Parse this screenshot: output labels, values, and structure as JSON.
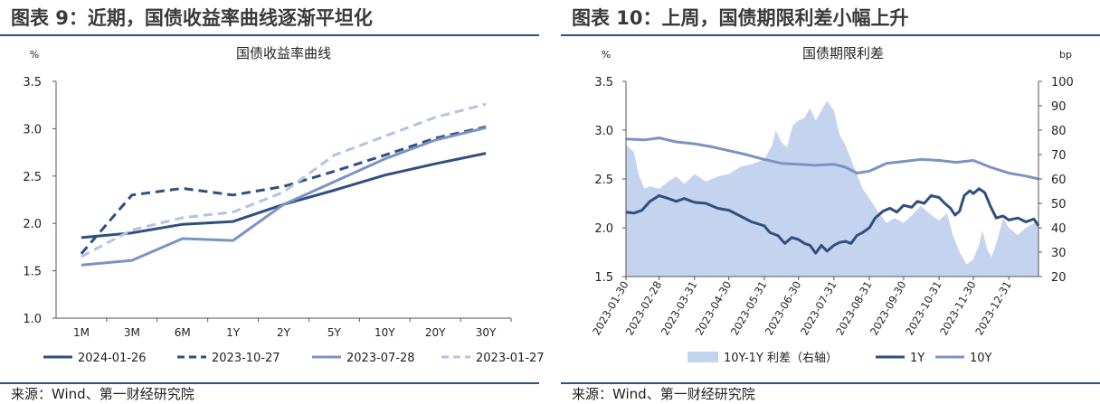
{
  "left": {
    "figure_title": "图表 9：近期，国债收益率曲线逐渐平坦化",
    "source": "来源：Wind、第一财经研究院"
  },
  "right": {
    "figure_title": "图表 10：上周，国债期限利差小幅上升",
    "source": "来源：Wind、第一财经研究院"
  },
  "colors": {
    "navy": "#2f4f7f",
    "mid": "#7b93c4",
    "light": "#b4c3e0",
    "area": "#c5d4ee"
  },
  "chart_data": [
    {
      "type": "line",
      "title": "国债收益率曲线",
      "ylabel": "%",
      "xlabel": "",
      "ylim": [
        1.0,
        3.5
      ],
      "yticks": [
        "1.0",
        "1.5",
        "2.0",
        "2.5",
        "3.0",
        "3.5"
      ],
      "categories": [
        "1M",
        "3M",
        "6M",
        "1Y",
        "2Y",
        "5Y",
        "10Y",
        "20Y",
        "30Y"
      ],
      "series": [
        {
          "name": "2024-01-26",
          "style": "solid",
          "color": "navy",
          "values": [
            1.85,
            1.9,
            1.99,
            2.02,
            2.2,
            2.35,
            2.51,
            2.63,
            2.74
          ]
        },
        {
          "name": "2023-10-27",
          "style": "dashed",
          "color": "navy",
          "values": [
            1.68,
            2.3,
            2.37,
            2.3,
            2.39,
            2.55,
            2.72,
            2.9,
            3.02
          ]
        },
        {
          "name": "2023-07-28",
          "style": "solid",
          "color": "mid",
          "values": [
            1.56,
            1.61,
            1.84,
            1.82,
            2.2,
            2.44,
            2.68,
            2.88,
            3.01
          ]
        },
        {
          "name": "2023-01-27",
          "style": "dashed",
          "color": "light",
          "values": [
            1.65,
            1.93,
            2.06,
            2.12,
            2.33,
            2.72,
            2.92,
            3.12,
            3.26
          ]
        }
      ]
    },
    {
      "type": "line",
      "title": "国债期限利差",
      "ylabel": "%",
      "ylabel_right": "bp",
      "ylim": [
        1.5,
        3.5
      ],
      "yticks": [
        "1.5",
        "2.0",
        "2.5",
        "3.0",
        "3.5"
      ],
      "ylim_right": [
        20,
        100
      ],
      "yticks_right": [
        "20",
        "30",
        "40",
        "50",
        "60",
        "70",
        "80",
        "90",
        "100"
      ],
      "x_start": "2023-01-30",
      "x_end": "2024-01-26",
      "categories": [
        "2023-01-30",
        "2023-02-28",
        "2023-03-31",
        "2023-04-30",
        "2023-05-31",
        "2023-06-30",
        "2023-07-31",
        "2023-08-31",
        "2023-09-30",
        "2023-10-31",
        "2023-11-30",
        "2023-12-31"
      ],
      "series": [
        {
          "name": "10Y-1Y 利差（右轴）",
          "type": "area",
          "axis": "right",
          "color": "area",
          "points": [
            [
              "2023-01-30",
              74
            ],
            [
              "2023-02-06",
              71
            ],
            [
              "2023-02-10",
              62
            ],
            [
              "2023-02-15",
              56
            ],
            [
              "2023-02-20",
              57
            ],
            [
              "2023-02-28",
              56
            ],
            [
              "2023-03-08",
              59
            ],
            [
              "2023-03-15",
              61
            ],
            [
              "2023-03-22",
              58
            ],
            [
              "2023-03-31",
              62
            ],
            [
              "2023-04-10",
              59
            ],
            [
              "2023-04-20",
              61
            ],
            [
              "2023-04-30",
              62
            ],
            [
              "2023-05-10",
              65
            ],
            [
              "2023-05-20",
              66
            ],
            [
              "2023-05-31",
              68
            ],
            [
              "2023-06-07",
              74
            ],
            [
              "2023-06-10",
              80
            ],
            [
              "2023-06-15",
              75
            ],
            [
              "2023-06-20",
              73
            ],
            [
              "2023-06-25",
              82
            ],
            [
              "2023-06-30",
              84
            ],
            [
              "2023-07-05",
              85
            ],
            [
              "2023-07-10",
              89
            ],
            [
              "2023-07-15",
              84
            ],
            [
              "2023-07-20",
              88
            ],
            [
              "2023-07-25",
              92
            ],
            [
              "2023-07-31",
              88
            ],
            [
              "2023-08-05",
              78
            ],
            [
              "2023-08-10",
              74
            ],
            [
              "2023-08-15",
              68
            ],
            [
              "2023-08-20",
              62
            ],
            [
              "2023-08-25",
              56
            ],
            [
              "2023-08-31",
              52
            ],
            [
              "2023-09-07",
              47
            ],
            [
              "2023-09-15",
              42
            ],
            [
              "2023-09-22",
              44
            ],
            [
              "2023-09-30",
              42
            ],
            [
              "2023-10-07",
              45
            ],
            [
              "2023-10-15",
              49
            ],
            [
              "2023-10-22",
              46
            ],
            [
              "2023-10-31",
              43
            ],
            [
              "2023-11-07",
              46
            ],
            [
              "2023-11-12",
              37
            ],
            [
              "2023-11-18",
              30
            ],
            [
              "2023-11-24",
              25
            ],
            [
              "2023-11-30",
              27
            ],
            [
              "2023-12-05",
              33
            ],
            [
              "2023-12-08",
              39
            ],
            [
              "2023-12-12",
              31
            ],
            [
              "2023-12-16",
              28
            ],
            [
              "2023-12-21",
              35
            ],
            [
              "2023-12-26",
              44
            ],
            [
              "2023-12-31",
              40
            ],
            [
              "2024-01-08",
              37
            ],
            [
              "2024-01-15",
              40
            ],
            [
              "2024-01-26",
              43
            ]
          ]
        },
        {
          "name": "1Y",
          "axis": "left",
          "color": "navy",
          "points": [
            [
              "2023-01-30",
              2.16
            ],
            [
              "2023-02-06",
              2.15
            ],
            [
              "2023-02-13",
              2.18
            ],
            [
              "2023-02-20",
              2.27
            ],
            [
              "2023-02-28",
              2.33
            ],
            [
              "2023-03-08",
              2.3
            ],
            [
              "2023-03-15",
              2.27
            ],
            [
              "2023-03-22",
              2.3
            ],
            [
              "2023-03-31",
              2.26
            ],
            [
              "2023-04-10",
              2.25
            ],
            [
              "2023-04-20",
              2.2
            ],
            [
              "2023-04-30",
              2.18
            ],
            [
              "2023-05-10",
              2.12
            ],
            [
              "2023-05-20",
              2.06
            ],
            [
              "2023-05-31",
              2.02
            ],
            [
              "2023-06-05",
              1.95
            ],
            [
              "2023-06-12",
              1.92
            ],
            [
              "2023-06-18",
              1.84
            ],
            [
              "2023-06-24",
              1.9
            ],
            [
              "2023-06-30",
              1.88
            ],
            [
              "2023-07-05",
              1.84
            ],
            [
              "2023-07-10",
              1.82
            ],
            [
              "2023-07-15",
              1.74
            ],
            [
              "2023-07-20",
              1.82
            ],
            [
              "2023-07-25",
              1.76
            ],
            [
              "2023-07-31",
              1.82
            ],
            [
              "2023-08-05",
              1.85
            ],
            [
              "2023-08-10",
              1.86
            ],
            [
              "2023-08-15",
              1.84
            ],
            [
              "2023-08-20",
              1.92
            ],
            [
              "2023-08-25",
              1.95
            ],
            [
              "2023-08-31",
              2.0
            ],
            [
              "2023-09-05",
              2.1
            ],
            [
              "2023-09-12",
              2.17
            ],
            [
              "2023-09-18",
              2.2
            ],
            [
              "2023-09-24",
              2.16
            ],
            [
              "2023-09-30",
              2.23
            ],
            [
              "2023-10-07",
              2.21
            ],
            [
              "2023-10-12",
              2.27
            ],
            [
              "2023-10-18",
              2.25
            ],
            [
              "2023-10-24",
              2.33
            ],
            [
              "2023-10-31",
              2.31
            ],
            [
              "2023-11-05",
              2.25
            ],
            [
              "2023-11-10",
              2.2
            ],
            [
              "2023-11-14",
              2.13
            ],
            [
              "2023-11-18",
              2.17
            ],
            [
              "2023-11-22",
              2.33
            ],
            [
              "2023-11-27",
              2.38
            ],
            [
              "2023-11-30",
              2.35
            ],
            [
              "2023-12-05",
              2.4
            ],
            [
              "2023-12-10",
              2.36
            ],
            [
              "2023-12-15",
              2.22
            ],
            [
              "2023-12-20",
              2.1
            ],
            [
              "2023-12-26",
              2.12
            ],
            [
              "2023-12-31",
              2.08
            ],
            [
              "2024-01-08",
              2.1
            ],
            [
              "2024-01-15",
              2.06
            ],
            [
              "2024-01-22",
              2.09
            ],
            [
              "2024-01-26",
              2.02
            ]
          ]
        },
        {
          "name": "10Y",
          "axis": "left",
          "color": "mid",
          "points": [
            [
              "2023-01-30",
              2.91
            ],
            [
              "2023-02-15",
              2.9
            ],
            [
              "2023-02-28",
              2.92
            ],
            [
              "2023-03-15",
              2.88
            ],
            [
              "2023-03-31",
              2.86
            ],
            [
              "2023-04-15",
              2.83
            ],
            [
              "2023-04-30",
              2.79
            ],
            [
              "2023-05-15",
              2.75
            ],
            [
              "2023-05-31",
              2.7
            ],
            [
              "2023-06-15",
              2.66
            ],
            [
              "2023-06-30",
              2.65
            ],
            [
              "2023-07-15",
              2.64
            ],
            [
              "2023-07-31",
              2.65
            ],
            [
              "2023-08-10",
              2.62
            ],
            [
              "2023-08-20",
              2.56
            ],
            [
              "2023-08-31",
              2.58
            ],
            [
              "2023-09-15",
              2.66
            ],
            [
              "2023-09-30",
              2.68
            ],
            [
              "2023-10-15",
              2.7
            ],
            [
              "2023-10-31",
              2.69
            ],
            [
              "2023-11-15",
              2.67
            ],
            [
              "2023-11-30",
              2.69
            ],
            [
              "2023-12-15",
              2.62
            ],
            [
              "2023-12-31",
              2.56
            ],
            [
              "2024-01-15",
              2.53
            ],
            [
              "2024-01-26",
              2.5
            ]
          ]
        }
      ]
    }
  ]
}
